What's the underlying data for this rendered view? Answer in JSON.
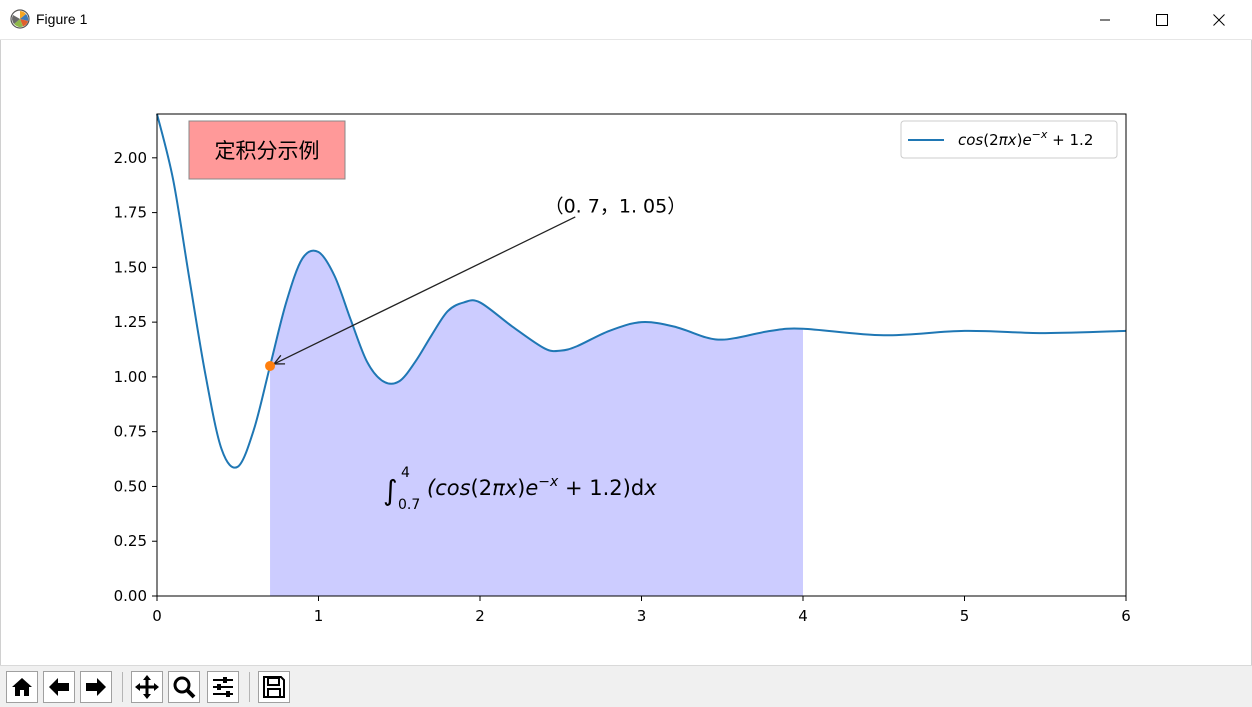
{
  "window": {
    "title": "Figure 1"
  },
  "toolbar": {
    "buttons": [
      "home-icon",
      "back-arrow-icon",
      "forward-arrow-icon",
      "pan-icon",
      "zoom-icon",
      "configure-subplots-icon",
      "save-icon"
    ]
  },
  "chart_data": {
    "type": "line",
    "title_box": "定积分示例",
    "legend": {
      "label": "cos(2πx)e^{-x} + 1.2",
      "placement": "upper-right"
    },
    "x": [
      0,
      0.1,
      0.2,
      0.3,
      0.4,
      0.5,
      0.6,
      0.7,
      0.8,
      0.9,
      1.0,
      1.1,
      1.2,
      1.3,
      1.4,
      1.5,
      1.6,
      1.7,
      1.8,
      1.9,
      2.0,
      2.2,
      2.4,
      2.5,
      2.6,
      2.8,
      3.0,
      3.2,
      3.4,
      3.5,
      3.6,
      3.8,
      4.0,
      4.5,
      5.0,
      5.5,
      6.0
    ],
    "y": [
      2.2,
      1.9,
      1.45,
      1.01,
      0.67,
      0.59,
      0.76,
      1.05,
      1.34,
      1.54,
      1.57,
      1.46,
      1.26,
      1.07,
      0.98,
      0.98,
      1.07,
      1.19,
      1.3,
      1.34,
      1.34,
      1.23,
      1.13,
      1.12,
      1.14,
      1.21,
      1.25,
      1.23,
      1.18,
      1.17,
      1.18,
      1.21,
      1.22,
      1.19,
      1.21,
      1.2,
      1.21
    ],
    "xlim": [
      0,
      6
    ],
    "ylim": [
      0,
      2.2
    ],
    "xticks": [
      "0",
      "1",
      "2",
      "3",
      "4",
      "5",
      "6"
    ],
    "yticks": [
      "0.00",
      "0.25",
      "0.50",
      "0.75",
      "1.00",
      "1.25",
      "1.50",
      "1.75",
      "2.00"
    ],
    "fill_range": [
      0.7,
      4.0
    ],
    "fill_color": "#ccccff",
    "line_color": "#1f77b4",
    "point": {
      "x": 0.7,
      "y": 1.05,
      "color": "#ff7f0e"
    },
    "annotation": "（0. 7，1. 05）",
    "annotation_text_at": {
      "x": 2.4,
      "y": 1.75
    },
    "formula": {
      "integral": "∫",
      "upper": "4",
      "lower": "0.7",
      "body": "(cos(2πx)e",
      "exp": "−x",
      "tail": " + 1.2)dx"
    },
    "grid": false
  }
}
